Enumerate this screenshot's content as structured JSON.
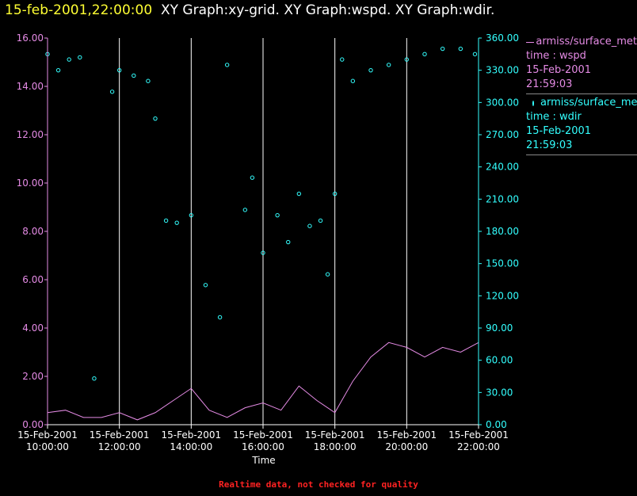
{
  "header": {
    "date": "15-feb-2001,22:00:00",
    "graphs": "XY Graph:xy-grid.  XY Graph:wspd.  XY Graph:wdir."
  },
  "legend": {
    "wspd": {
      "name": "armiss/surface_met",
      "var": "time : wspd",
      "date": "15-Feb-2001",
      "time": "21:59:03"
    },
    "wdir": {
      "name": "armiss/surface_met",
      "var": "time : wdir",
      "date": "15-Feb-2001",
      "time": "21:59:03"
    }
  },
  "footer": "Realtime data, not checked for quality",
  "colors": {
    "wspd": "#e58be5",
    "wdir": "#33ffff",
    "grid": "#ffffff"
  },
  "chart_data": {
    "type": "line",
    "xlabel": "Time",
    "xlim_hours": [
      10,
      22
    ],
    "x_ticks": [
      {
        "date": "15-Feb-2001",
        "time": "10:00:00"
      },
      {
        "date": "15-Feb-2001",
        "time": "12:00:00"
      },
      {
        "date": "15-Feb-2001",
        "time": "14:00:00"
      },
      {
        "date": "15-Feb-2001",
        "time": "16:00:00"
      },
      {
        "date": "15-Feb-2001",
        "time": "18:00:00"
      },
      {
        "date": "15-Feb-2001",
        "time": "20:00:00"
      },
      {
        "date": "15-Feb-2001",
        "time": "22:00:00"
      }
    ],
    "y_left": {
      "ylim": [
        0,
        16
      ],
      "ticks": [
        "0.00",
        "2.00",
        "4.00",
        "6.00",
        "8.00",
        "10.00",
        "12.00",
        "14.00",
        "16.00"
      ]
    },
    "y_right": {
      "ylim": [
        0,
        360
      ],
      "ticks": [
        "0.00",
        "30.00",
        "60.00",
        "90.00",
        "120.00",
        "150.00",
        "180.00",
        "210.00",
        "240.00",
        "270.00",
        "300.00",
        "330.00",
        "360.00"
      ]
    },
    "series": [
      {
        "var": "wspd",
        "style": "line",
        "axis": "left",
        "x": [
          10.0,
          10.5,
          11.0,
          11.5,
          12.0,
          12.5,
          13.0,
          13.5,
          14.0,
          14.5,
          15.0,
          15.5,
          16.0,
          16.5,
          17.0,
          17.5,
          18.0,
          18.5,
          19.0,
          19.5,
          20.0,
          20.5,
          21.0,
          21.5,
          22.0
        ],
        "y": [
          0.5,
          0.6,
          0.3,
          0.3,
          0.5,
          0.2,
          0.5,
          1.0,
          1.5,
          0.6,
          0.3,
          0.7,
          0.9,
          0.6,
          1.6,
          1.0,
          0.5,
          1.8,
          2.8,
          3.4,
          3.2,
          2.8,
          3.2,
          3.0,
          3.4
        ]
      },
      {
        "var": "wdir",
        "style": "scatter",
        "axis": "right",
        "x": [
          10.0,
          10.3,
          10.6,
          10.9,
          11.3,
          11.8,
          12.0,
          12.4,
          12.8,
          13.0,
          13.3,
          13.6,
          14.0,
          14.4,
          14.8,
          15.0,
          15.5,
          15.7,
          16.0,
          16.4,
          16.7,
          17.0,
          17.3,
          17.6,
          17.8,
          18.0,
          18.2,
          18.5,
          19.0,
          19.5,
          20.0,
          20.5,
          21.0,
          21.5,
          21.9
        ],
        "y": [
          345,
          330,
          340,
          342,
          43,
          310,
          330,
          325,
          320,
          285,
          190,
          188,
          195,
          130,
          100,
          335,
          200,
          230,
          160,
          195,
          170,
          215,
          185,
          190,
          140,
          215,
          340,
          320,
          330,
          335,
          340,
          345,
          350,
          350,
          345
        ]
      }
    ]
  }
}
